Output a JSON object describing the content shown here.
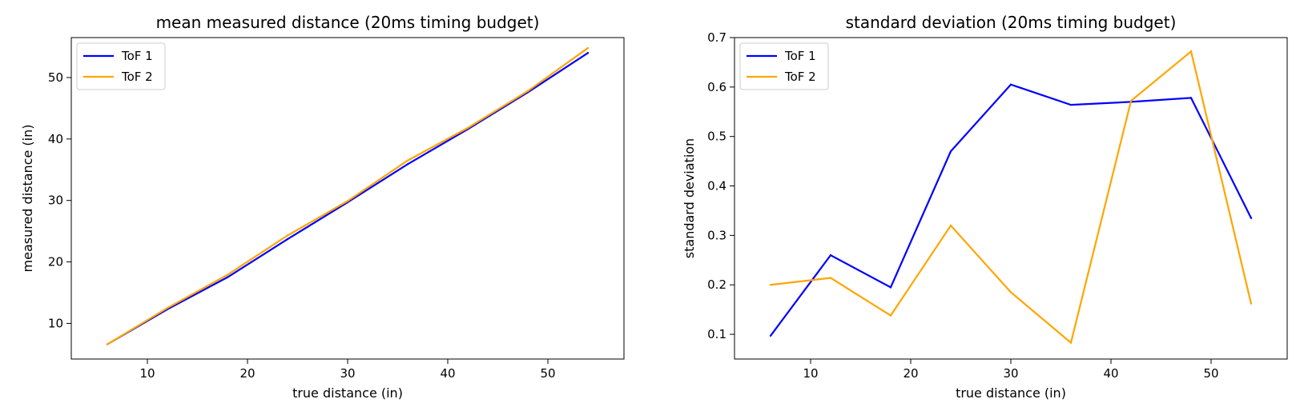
{
  "chart_data": [
    {
      "type": "line",
      "title": "mean measured distance (20ms timing budget)",
      "xlabel": "true distance (in)",
      "ylabel": "measured distance (in)",
      "xlim": [
        2.4,
        57.6
      ],
      "ylim": [
        4.2,
        56.5
      ],
      "xticks": [
        10,
        20,
        30,
        40,
        50
      ],
      "yticks": [
        10,
        20,
        30,
        40,
        50
      ],
      "grid": false,
      "legend_position": "top-left",
      "x": [
        6,
        12,
        18,
        24,
        30,
        36,
        42,
        48,
        54
      ],
      "series": [
        {
          "name": "ToF 1",
          "color": "#0000ff",
          "values": [
            6.6,
            12.3,
            17.5,
            23.7,
            29.7,
            35.9,
            41.6,
            47.6,
            54.0
          ]
        },
        {
          "name": "ToF 2",
          "color": "#ffa500",
          "values": [
            6.6,
            12.5,
            17.9,
            24.3,
            29.9,
            36.5,
            41.8,
            47.8,
            54.8
          ]
        }
      ]
    },
    {
      "type": "line",
      "title": "standard deviation (20ms timing budget)",
      "xlabel": "true distance (in)",
      "ylabel": "standard deviation",
      "xlim": [
        2.4,
        57.6
      ],
      "ylim": [
        0.05,
        0.7
      ],
      "xticks": [
        10,
        20,
        30,
        40,
        50
      ],
      "yticks": [
        0.1,
        0.2,
        0.3,
        0.4,
        0.5,
        0.6,
        0.7
      ],
      "grid": false,
      "legend_position": "top-left",
      "x": [
        6,
        12,
        18,
        24,
        30,
        36,
        42,
        48,
        54
      ],
      "series": [
        {
          "name": "ToF 1",
          "color": "#0000ff",
          "values": [
            0.097,
            0.26,
            0.195,
            0.47,
            0.605,
            0.564,
            0.57,
            0.578,
            0.335
          ]
        },
        {
          "name": "ToF 2",
          "color": "#ffa500",
          "values": [
            0.2,
            0.214,
            0.138,
            0.32,
            0.185,
            0.083,
            0.572,
            0.672,
            0.162
          ]
        }
      ]
    }
  ]
}
